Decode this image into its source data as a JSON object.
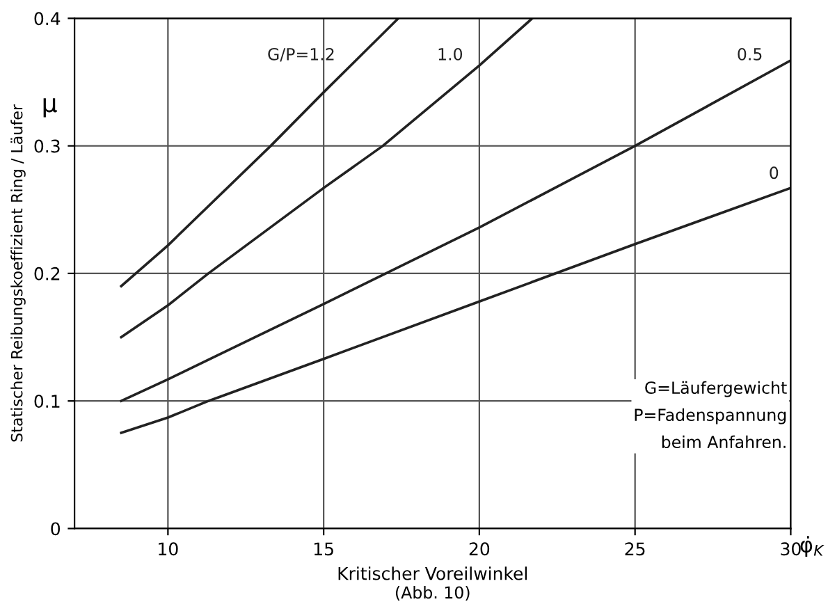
{
  "chart_data": {
    "type": "line",
    "xlabel": "Kritischer Voreilwinkel",
    "ylabel": "Statischer Reibungskoeffizient Ring / Läufer",
    "annotations": [
      "μ",
      "φ̇$_{K}$",
      "G=Läufergewicht\nP=Fadenspannung\nbeim Anfahren.",
      "(Abb. 10)"
    ],
    "series": [
      {
        "name": "G/P=1.2",
        "color": "#222222",
        "x": [
          8.5,
          10,
          13.3,
          15,
          17.4
        ],
        "values": [
          0.19,
          0.222,
          0.3,
          0.342,
          0.4
        ]
      },
      {
        "name": "1.0",
        "color": "#222222",
        "x": [
          8.5,
          10,
          11.3,
          15,
          16.9,
          20,
          21.7
        ],
        "values": [
          0.15,
          0.175,
          0.2,
          0.267,
          0.3,
          0.363,
          0.4
        ]
      },
      {
        "name": "0.5",
        "color": "#222222",
        "x": [
          8.5,
          10,
          15,
          20,
          25,
          30
        ],
        "values": [
          0.1,
          0.117,
          0.176,
          0.236,
          0.3,
          0.367
        ]
      },
      {
        "name": "0",
        "color": "#222222",
        "x": [
          8.5,
          10,
          11.3,
          15,
          20,
          25,
          30
        ],
        "values": [
          0.075,
          0.087,
          0.1,
          0.133,
          0.178,
          0.223,
          0.267
        ]
      }
    ],
    "xlim": [
      7,
      30
    ],
    "xticks": [
      10,
      15,
      20,
      25,
      30
    ],
    "ylim": [
      0,
      0.4
    ],
    "yticks": [
      0,
      0.1,
      0.2,
      0.3,
      0.4
    ],
    "grid": true,
    "marker": "none",
    "line_style": "solid"
  }
}
